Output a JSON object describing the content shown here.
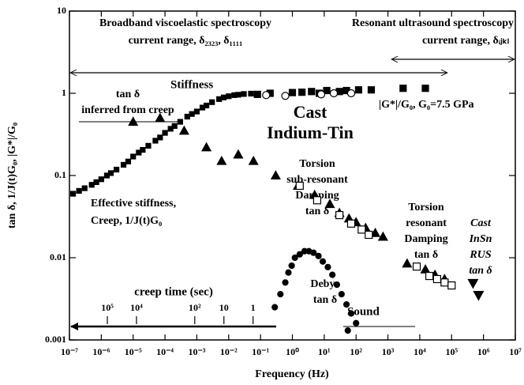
{
  "chart_data": {
    "type": "scatter",
    "x_label": "Frequency (Hz)",
    "y_label": "tan δ, 1/J(t)G₀, |G*|/G₀",
    "log_x": true,
    "log_y": true,
    "xlim": [
      1e-07,
      10000000.0
    ],
    "ylim": [
      0.001,
      10
    ],
    "xticks": [
      {
        "value": 1e-07,
        "label": "10⁻⁷"
      },
      {
        "value": 1e-06,
        "label": "10⁻⁶"
      },
      {
        "value": 1e-05,
        "label": "10⁻⁵"
      },
      {
        "value": 0.0001,
        "label": "10⁻⁴"
      },
      {
        "value": 0.001,
        "label": "10⁻³"
      },
      {
        "value": 0.01,
        "label": "10⁻²"
      },
      {
        "value": 0.1,
        "label": "10⁻¹"
      },
      {
        "value": 1,
        "label": "10⁰"
      },
      {
        "value": 10,
        "label": "10¹"
      },
      {
        "value": 100,
        "label": "10²"
      },
      {
        "value": 1000,
        "label": "10³"
      },
      {
        "value": 10000,
        "label": "10⁴"
      },
      {
        "value": 100000,
        "label": "10⁵"
      },
      {
        "value": 1000000,
        "label": "10⁶"
      },
      {
        "value": 10000000,
        "label": "10⁷"
      }
    ],
    "yticks": [
      0.001,
      0.01,
      0.1,
      1,
      10
    ],
    "creep_axis": {
      "label": "creep time (sec)",
      "lim": [
        2000000,
        1e-09
      ],
      "ticks": [
        {
          "value": 100000,
          "label": "10⁵"
        },
        {
          "value": 10000,
          "label": "10⁴"
        },
        {
          "value": 100,
          "label": "10²"
        },
        10,
        1
      ]
    },
    "series": [
      {
        "marker": "square",
        "color": "#000000",
        "x": [
          1.3e-07,
          2e-07,
          3e-07,
          5e-07,
          7e-07,
          1e-06,
          1.5e-06,
          2e-06,
          3e-06,
          5e-06,
          7e-06,
          1e-05,
          1.5e-05,
          2e-05,
          3e-05,
          5e-05,
          7e-05,
          0.0001,
          0.00015,
          0.0002,
          0.0003,
          0.0005,
          0.0007,
          0.001,
          0.0015,
          0.002,
          0.003,
          0.005,
          0.007,
          0.01,
          0.015,
          0.02,
          0.03,
          0.05
        ],
        "values": [
          0.06,
          0.065,
          0.07,
          0.077,
          0.083,
          0.09,
          0.1,
          0.107,
          0.118,
          0.135,
          0.148,
          0.17,
          0.19,
          0.205,
          0.23,
          0.265,
          0.29,
          0.33,
          0.37,
          0.4,
          0.45,
          0.52,
          0.56,
          0.6,
          0.67,
          0.71,
          0.78,
          0.85,
          0.89,
          0.92,
          0.95,
          0.96,
          0.98,
          0.99
        ]
      },
      {
        "marker": "square",
        "color": "#000000",
        "x": [
          0.08,
          0.2,
          1,
          2,
          4,
          7,
          12,
          30,
          50,
          120,
          300,
          3000,
          15000
        ],
        "values": [
          0.97,
          1.0,
          1.02,
          1.03,
          1.05,
          1.0,
          1.08,
          1.05,
          1.08,
          1.1,
          1.1,
          1.15,
          1.15
        ]
      },
      {
        "marker": "open-circle",
        "color": "#000000",
        "x": [
          0.15,
          0.6,
          8,
          20,
          70
        ],
        "values": [
          0.95,
          0.93,
          0.97,
          1.0,
          1.0
        ]
      },
      {
        "marker": "triangle",
        "color": "#000000",
        "x": [
          1e-05,
          7e-05,
          0.0004,
          0.002,
          0.006,
          0.02,
          0.06,
          0.3,
          1.5,
          5,
          15,
          30,
          60,
          100,
          200,
          400,
          700,
          4000,
          15000,
          30000,
          60000
        ],
        "values": [
          0.45,
          0.5,
          0.35,
          0.22,
          0.15,
          0.18,
          0.15,
          0.1,
          0.075,
          0.058,
          0.045,
          0.035,
          0.03,
          0.027,
          0.023,
          0.02,
          0.018,
          0.0085,
          0.0072,
          0.0062,
          0.0055
        ]
      },
      {
        "marker": "open-square",
        "color": "#000000",
        "x": [
          1.7,
          6,
          30,
          70,
          150,
          250,
          8000,
          20000,
          35000,
          60000,
          100000
        ],
        "values": [
          0.075,
          0.05,
          0.033,
          0.026,
          0.022,
          0.019,
          0.0078,
          0.006,
          0.0055,
          0.005,
          0.0046
        ]
      },
      {
        "marker": "triangle-down",
        "color": "#000000",
        "x": [
          470000,
          700000
        ],
        "values": [
          0.0049,
          0.0035
        ]
      },
      {
        "marker": "circle",
        "color": "#000000",
        "x": [
          0.28,
          0.42,
          0.6,
          0.75,
          0.95,
          1.2,
          1.7,
          2.4,
          3.3,
          4.6,
          6.6,
          9,
          13,
          18,
          25,
          35,
          50,
          70,
          100,
          55
        ],
        "values": [
          0.0025,
          0.0036,
          0.005,
          0.0066,
          0.008,
          0.01,
          0.011,
          0.012,
          0.012,
          0.0115,
          0.0105,
          0.009,
          0.0077,
          0.0062,
          0.0047,
          0.0036,
          0.0027,
          0.0021,
          0.0016,
          0.0013
        ]
      }
    ],
    "annotations": [
      "Broadband viscoelastic spectroscopy",
      "current range, δ₂₃₂₃, δ₁₁₁₁",
      "Resonant ultrasound spectroscopy",
      "current range, δᵢⱼₖₗ",
      "tan δ",
      "inferred from creep",
      "Stiffness",
      "Cast",
      "Indium-Tin",
      "|G*|/G₀, G₀=7.5 GPa",
      "Torsion",
      "sub-resonant",
      "Damping",
      "tan δ",
      "Effective stiffness,",
      "Creep, 1/J(t)G₀",
      "Torsion",
      "resonant",
      "Damping",
      "tan δ",
      "Cast",
      "InSn",
      "RUS",
      "tan δ",
      "Debye",
      "tan δ",
      "Sound"
    ]
  }
}
